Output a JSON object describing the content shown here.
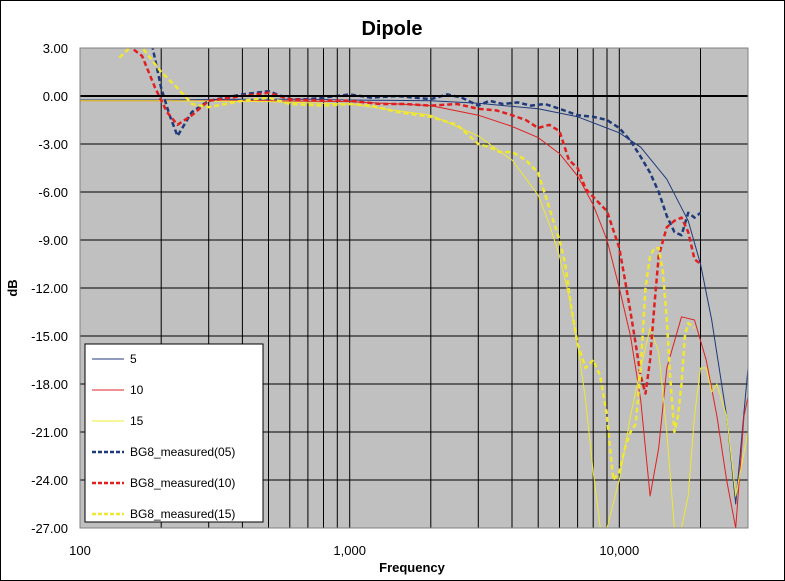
{
  "chart_data": {
    "type": "line",
    "title": "Dipole",
    "xlabel": "Frequency",
    "ylabel": "dB",
    "x_scale": "log",
    "xlim": [
      100,
      30000
    ],
    "ylim": [
      -27,
      3
    ],
    "y_ticks": [
      3,
      0,
      -3,
      -6,
      -9,
      -12,
      -15,
      -18,
      -21,
      -24,
      -27
    ],
    "y_tick_labels": [
      "3.00",
      "0.00",
      "-3.00",
      "-6.00",
      "-9.00",
      "-12.00",
      "-15.00",
      "-18.00",
      "-21.00",
      "-24.00",
      "-27.00"
    ],
    "x_ticks": [
      100,
      1000,
      10000
    ],
    "x_tick_labels": [
      "100",
      "1,000",
      "10,000"
    ],
    "grid": true,
    "legend_position": "bottom-left",
    "background_color": "#c0c0c0",
    "series": [
      {
        "name": "5",
        "style": "solid",
        "color": "#1f3a7a",
        "x": [
          100,
          200,
          400,
          700,
          1000,
          2000,
          3000,
          5000,
          7000,
          10000,
          12000,
          15000,
          18000,
          20000,
          22000,
          25000,
          27000,
          30000
        ],
        "y": [
          -0.25,
          -0.25,
          -0.2,
          -0.2,
          -0.25,
          -0.3,
          -0.45,
          -0.8,
          -1.3,
          -2.3,
          -3.2,
          -5.2,
          -7.8,
          -10.5,
          -14,
          -20,
          -25.5,
          -17
        ]
      },
      {
        "name": "10",
        "style": "solid",
        "color": "#e02020",
        "x": [
          100,
          200,
          500,
          1000,
          2000,
          3000,
          4000,
          5000,
          6000,
          7000,
          8000,
          9000,
          10000,
          11000,
          12000,
          13000,
          14000,
          15000,
          17000,
          19000,
          21000,
          23000,
          25000,
          27000,
          29000,
          30000
        ],
        "y": [
          -0.3,
          -0.3,
          -0.3,
          -0.35,
          -0.6,
          -1.2,
          -1.9,
          -2.6,
          -3.6,
          -5,
          -6.8,
          -9,
          -12,
          -15,
          -19,
          -25,
          -22,
          -17,
          -13.8,
          -14,
          -16.5,
          -20,
          -24,
          -27,
          -20,
          -18.8
        ]
      },
      {
        "name": "15",
        "style": "solid",
        "color": "#f0e830",
        "x": [
          100,
          200,
          500,
          1000,
          2000,
          3000,
          4000,
          5000,
          5500,
          6000,
          6500,
          7000,
          7500,
          8000,
          8500,
          9000,
          10000,
          11000,
          12000,
          13000,
          14000,
          15000,
          16000,
          17000,
          18000,
          19000,
          20000,
          21000,
          22000,
          23000,
          25000,
          27000,
          30000
        ],
        "y": [
          -0.3,
          -0.3,
          -0.35,
          -0.5,
          -1.2,
          -2.5,
          -4,
          -6.2,
          -8,
          -10,
          -12.5,
          -15.5,
          -19,
          -23.5,
          -27,
          -27,
          -24,
          -20,
          -17,
          -14.5,
          -16,
          -21,
          -27,
          -27,
          -25,
          -20,
          -17,
          -17,
          -18.5,
          -18,
          -20,
          -25,
          -21
        ]
      },
      {
        "name": "BG8_measured(05)",
        "style": "dashed",
        "color": "#1f3a7a",
        "x": [
          185,
          200,
          215,
          230,
          260,
          300,
          400,
          500,
          600,
          700,
          800,
          1000,
          1200,
          1500,
          2000,
          2300,
          2600,
          3000,
          3300,
          3700,
          4200,
          4700,
          5300,
          6000,
          7000,
          8000,
          9000,
          10000,
          11000,
          12000,
          13000,
          14000,
          15000,
          16000,
          17000,
          18000,
          19000,
          20000
        ],
        "y": [
          3.2,
          0.5,
          -1.2,
          -2.5,
          -1,
          -0.3,
          0.1,
          0.3,
          -0.2,
          -0.2,
          -0.1,
          0.1,
          -0.1,
          0,
          -0.2,
          0.1,
          -0.1,
          -0.6,
          -0.3,
          -0.5,
          -0.4,
          -0.6,
          -0.5,
          -0.8,
          -1.2,
          -1.3,
          -1.5,
          -2,
          -2.8,
          -3.8,
          -4.8,
          -6,
          -7.5,
          -8.5,
          -8.7,
          -7.3,
          -7.6,
          -7.3
        ]
      },
      {
        "name": "BG8_measured(10)",
        "style": "dashed",
        "color": "#e02020",
        "x": [
          150,
          170,
          190,
          210,
          230,
          260,
          300,
          400,
          500,
          600,
          800,
          1000,
          1300,
          1600,
          2000,
          2500,
          3000,
          3500,
          4000,
          4500,
          5000,
          5500,
          6000,
          6500,
          7000,
          7500,
          8000,
          9000,
          10000,
          10500,
          11000,
          11500,
          12000,
          12500,
          13000,
          13500,
          14000,
          15000,
          16000,
          17000,
          18000,
          19000,
          20000
        ],
        "y": [
          3.2,
          2.5,
          0.5,
          -1,
          -1.8,
          -1.2,
          -0.3,
          0,
          0.2,
          -0.2,
          -0.3,
          -0.3,
          -0.5,
          -0.5,
          -0.6,
          -0.5,
          -0.8,
          -0.9,
          -1.2,
          -1.5,
          -2,
          -1.8,
          -2.2,
          -4,
          -4.5,
          -5.8,
          -6.3,
          -7.2,
          -9.5,
          -11.5,
          -13.5,
          -15.5,
          -17.5,
          -18.6,
          -16.5,
          -13,
          -10,
          -8.2,
          -7.8,
          -7.6,
          -8.5,
          -10.2,
          -10.5
        ]
      },
      {
        "name": "BG8_measured(15)",
        "style": "dashed",
        "color": "#f0e830",
        "x": [
          140,
          155,
          165,
          180,
          200,
          230,
          260,
          300,
          400,
          500,
          600,
          800,
          1000,
          1200,
          1500,
          2000,
          2500,
          3000,
          3300,
          3600,
          4000,
          4500,
          5000,
          5500,
          6000,
          6300,
          6600,
          7000,
          7500,
          8000,
          8500,
          9000,
          9500,
          10000,
          10500,
          11000,
          11500,
          12000,
          12500,
          13000,
          13500,
          14000,
          14500,
          15000,
          15500,
          16000,
          16500,
          17000,
          17500,
          18000,
          19000
        ],
        "y": [
          2.4,
          3.1,
          3.3,
          2.5,
          1.5,
          0.5,
          -0.5,
          -0.7,
          -0.3,
          -0.1,
          -0.5,
          -0.6,
          -0.5,
          -0.6,
          -1,
          -1.3,
          -1.8,
          -3,
          -3.2,
          -3.5,
          -3.5,
          -4,
          -4.8,
          -7,
          -9,
          -10.5,
          -13,
          -15.5,
          -17,
          -16.5,
          -17.5,
          -20,
          -24,
          -23.5,
          -22,
          -21,
          -20.5,
          -17,
          -12,
          -10,
          -9.5,
          -9.5,
          -11,
          -14,
          -18,
          -21,
          -20,
          -18,
          -15,
          -14.2,
          -14.5
        ]
      }
    ]
  }
}
